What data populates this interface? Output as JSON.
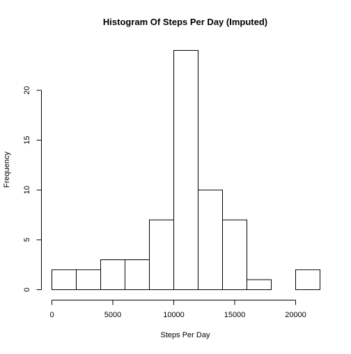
{
  "chart_data": {
    "type": "bar",
    "title": "Histogram Of Steps Per Day (Imputed)",
    "xlabel": "Steps Per Day",
    "ylabel": "Frequency",
    "bins": [
      {
        "start": 0,
        "end": 2000,
        "count": 2
      },
      {
        "start": 2000,
        "end": 4000,
        "count": 2
      },
      {
        "start": 4000,
        "end": 6000,
        "count": 3
      },
      {
        "start": 6000,
        "end": 8000,
        "count": 3
      },
      {
        "start": 8000,
        "end": 10000,
        "count": 7
      },
      {
        "start": 10000,
        "end": 12000,
        "count": 24
      },
      {
        "start": 12000,
        "end": 14000,
        "count": 10
      },
      {
        "start": 14000,
        "end": 16000,
        "count": 7
      },
      {
        "start": 16000,
        "end": 18000,
        "count": 1
      },
      {
        "start": 18000,
        "end": 20000,
        "count": 0
      },
      {
        "start": 20000,
        "end": 22000,
        "count": 2
      }
    ],
    "x_ticks": [
      0,
      5000,
      10000,
      15000,
      20000
    ],
    "y_ticks": [
      0,
      5,
      10,
      15,
      20
    ],
    "xlim": [
      0,
      22000
    ],
    "ylim": [
      0,
      24
    ],
    "grid": false,
    "legend": "none",
    "colors": {
      "bar_fill": "#ffffff",
      "bar_stroke": "#000000"
    }
  }
}
